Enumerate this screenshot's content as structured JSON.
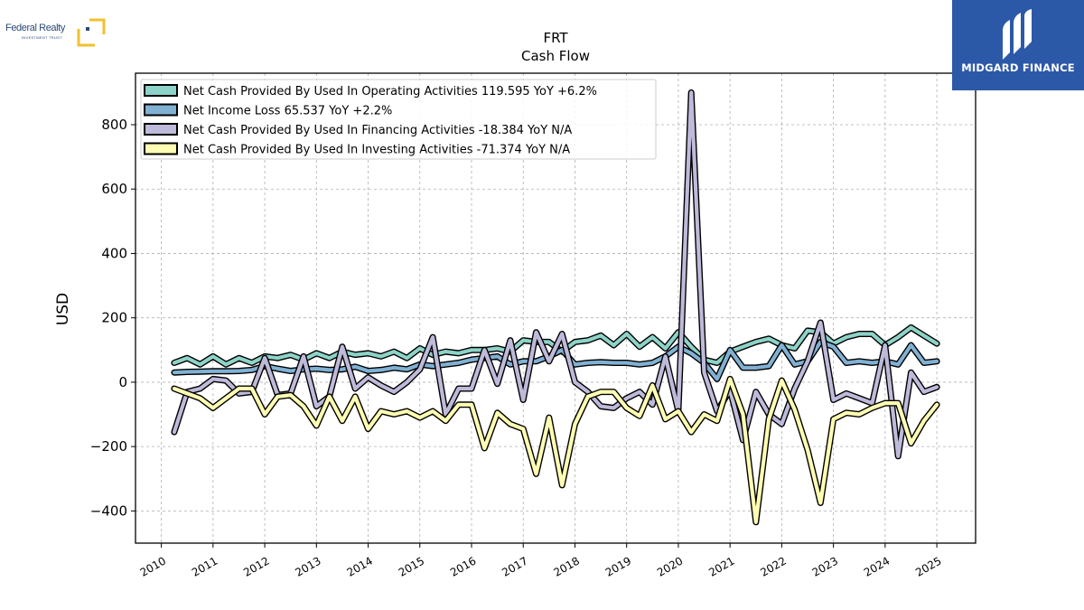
{
  "branding": {
    "left_logo_text": "Federal Realty",
    "left_logo_subtext": "INVESTMENT TRUST",
    "right_logo_text": "MIDGARD FINANCE",
    "left_logo_color": "#f2c12e",
    "right_logo_bg": "#2c58a8"
  },
  "chart_data": {
    "type": "line",
    "title": "FRT",
    "subtitle": "Cash Flow",
    "xlabel": "",
    "ylabel": "USD",
    "xlim": [
      2009.5,
      2025.75
    ],
    "ylim": [
      -500,
      960
    ],
    "x_ticks": [
      "2010",
      "2011",
      "2012",
      "2013",
      "2014",
      "2015",
      "2016",
      "2017",
      "2018",
      "2019",
      "2020",
      "2021",
      "2022",
      "2023",
      "2024",
      "2025"
    ],
    "y_ticks": [
      -400,
      -200,
      0,
      200,
      400,
      600,
      800
    ],
    "y_tick_labels": [
      "−400",
      "−200",
      "0",
      "200",
      "400",
      "600",
      "800"
    ],
    "grid": true,
    "legend_position": "top-left",
    "x": [
      2010.25,
      2010.5,
      2010.75,
      2011.0,
      2011.25,
      2011.5,
      2011.75,
      2012.0,
      2012.25,
      2012.5,
      2012.75,
      2013.0,
      2013.25,
      2013.5,
      2013.75,
      2014.0,
      2014.25,
      2014.5,
      2014.75,
      2015.0,
      2015.25,
      2015.5,
      2015.75,
      2016.0,
      2016.25,
      2016.5,
      2016.75,
      2017.0,
      2017.25,
      2017.5,
      2017.75,
      2018.0,
      2018.25,
      2018.5,
      2018.75,
      2019.0,
      2019.25,
      2019.5,
      2019.75,
      2020.0,
      2020.25,
      2020.5,
      2020.75,
      2021.0,
      2021.25,
      2021.5,
      2021.75,
      2022.0,
      2022.25,
      2022.5,
      2022.75,
      2023.0,
      2023.25,
      2023.5,
      2023.75,
      2024.0,
      2024.25,
      2024.5,
      2024.75,
      2025.0
    ],
    "series": [
      {
        "name": "Net Cash Provided By Used In Operating Activities",
        "legend_label": "Net Cash Provided By Used In Operating Activities  119.595 YoY +6.2%",
        "color": "#8dd3c7",
        "values": [
          60,
          75,
          55,
          80,
          55,
          75,
          60,
          80,
          75,
          85,
          70,
          90,
          75,
          95,
          85,
          90,
          80,
          95,
          75,
          105,
          85,
          95,
          90,
          100,
          100,
          105,
          95,
          130,
          125,
          125,
          95,
          125,
          130,
          145,
          115,
          150,
          110,
          140,
          105,
          155,
          110,
          70,
          60,
          95,
          110,
          125,
          135,
          115,
          105,
          160,
          155,
          120,
          140,
          150,
          150,
          115,
          140,
          170,
          145,
          120
        ]
      },
      {
        "name": "Net Income Loss",
        "legend_label": "Net Income Loss  65.537 YoY +2.2%",
        "color": "#80b1d3",
        "values": [
          30,
          32,
          33,
          34,
          34,
          35,
          38,
          50,
          42,
          35,
          40,
          42,
          38,
          40,
          48,
          35,
          38,
          45,
          40,
          55,
          50,
          55,
          60,
          70,
          75,
          80,
          55,
          65,
          65,
          80,
          100,
          55,
          60,
          62,
          60,
          60,
          55,
          60,
          80,
          110,
          90,
          60,
          10,
          100,
          45,
          45,
          50,
          115,
          55,
          65,
          125,
          110,
          60,
          65,
          60,
          65,
          55,
          115,
          60,
          65
        ]
      },
      {
        "name": "Net Cash Provided By Used In Financing Activities",
        "legend_label": "Net Cash Provided By Used In Financing Activities  -18.384 YoY N/A",
        "color": "#bebada",
        "values": [
          -155,
          -30,
          -20,
          10,
          5,
          -35,
          -30,
          75,
          -40,
          -35,
          80,
          -75,
          -45,
          110,
          -20,
          15,
          -10,
          -30,
          0,
          40,
          140,
          -100,
          -20,
          -20,
          100,
          -5,
          130,
          -55,
          155,
          65,
          150,
          0,
          -30,
          -75,
          -80,
          -50,
          -30,
          -70,
          80,
          -90,
          900,
          30,
          -90,
          -25,
          -180,
          -30,
          -100,
          -130,
          -20,
          65,
          185,
          -55,
          -35,
          -50,
          -65,
          115,
          -230,
          30,
          -30,
          -15
        ]
      },
      {
        "name": "Net Cash Provided By Used In Investing Activities",
        "legend_label": "Net Cash Provided By Used In Investing Activities  -71.374 YoY N/A",
        "color": "#ffffb3",
        "values": [
          -20,
          -35,
          -50,
          -80,
          -50,
          -20,
          -20,
          -100,
          -45,
          -40,
          -75,
          -135,
          -45,
          -120,
          -45,
          -145,
          -90,
          -100,
          -90,
          -110,
          -90,
          -120,
          -70,
          -70,
          -205,
          -95,
          -130,
          -145,
          -285,
          -110,
          -320,
          -130,
          -45,
          -30,
          -30,
          -80,
          -105,
          -10,
          -115,
          -90,
          -155,
          -100,
          -120,
          10,
          -100,
          -435,
          -115,
          5,
          -85,
          -210,
          -375,
          -115,
          -95,
          -100,
          -80,
          -65,
          -65,
          -190,
          -120,
          -70
        ]
      }
    ]
  }
}
